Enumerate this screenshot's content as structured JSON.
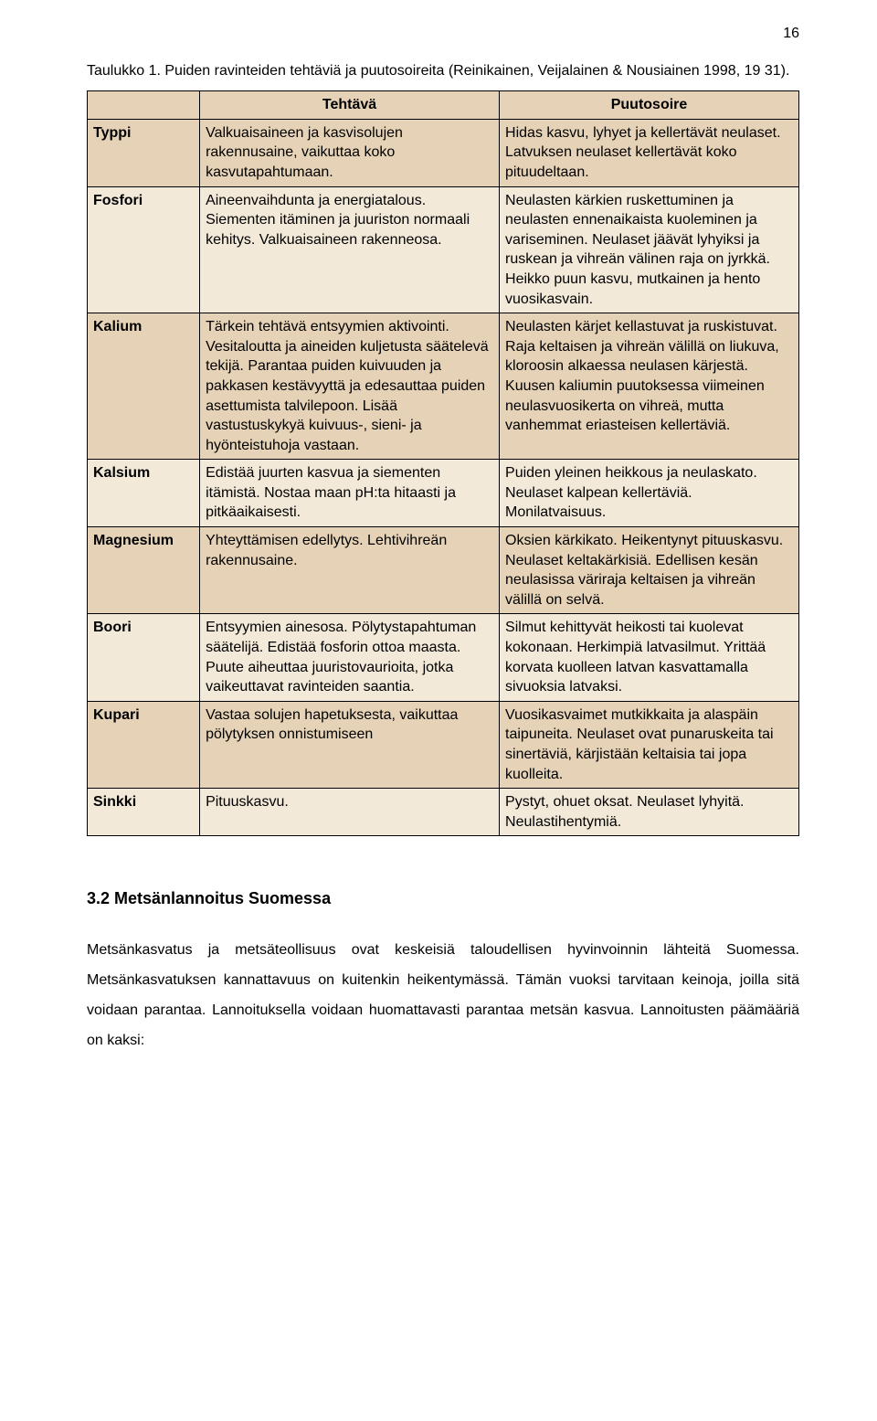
{
  "page_number": "16",
  "caption": "Taulukko 1. Puiden ravinteiden tehtäviä ja puutosoireita (Reinikainen, Veijalainen & Nousiainen 1998, 19 31).",
  "table": {
    "header": {
      "c1": "",
      "c2": "Tehtävä",
      "c3": "Puutosoire"
    },
    "rows": [
      {
        "label": "Typpi",
        "task": "Valkuaisaineen ja kasvisolujen rakennusaine, vaikuttaa koko kasvutapahtumaan.",
        "deficiency": "Hidas kasvu, lyhyet ja kellertävät neulaset. Latvuksen neulaset kellertävät koko pituudeltaan."
      },
      {
        "label": "Fosfori",
        "task": "Aineenvaihdunta ja energiatalous. Siementen itäminen ja juuriston normaali kehitys. Valkuaisaineen rakenneosa.",
        "deficiency": "Neulasten kärkien ruskettuminen ja neulasten ennenaikaista kuoleminen ja variseminen. Neulaset jäävät lyhyiksi ja ruskean ja vihreän välinen raja on jyrkkä. Heikko puun kasvu, mutkainen ja hento vuosikasvain."
      },
      {
        "label": "Kalium",
        "task": "Tärkein tehtävä entsyymien aktivointi. Vesitaloutta ja aineiden kuljetusta säätelevä tekijä. Parantaa puiden kuivuuden ja pakkasen kestävyyttä ja edesauttaa puiden asettumista talvilepoon. Lisää vastustuskykyä kuivuus-, sieni- ja hyönteistuhoja vastaan.",
        "deficiency": "Neulasten kärjet kellastuvat ja ruskistuvat. Raja keltaisen ja vihreän välillä on liukuva, kloroosin alkaessa neulasen kärjestä. Kuusen kaliumin puutoksessa viimeinen neulasvuosikerta on vihreä, mutta vanhemmat eriasteisen kellertäviä."
      },
      {
        "label": "Kalsium",
        "task": "Edistää juurten kasvua ja siementen itämistä. Nostaa maan pH:ta hitaasti ja pitkäaikaisesti.",
        "deficiency": "Puiden yleinen heikkous ja neulaskato. Neulaset kalpean kellertäviä. Monilatvaisuus."
      },
      {
        "label": "Magnesium",
        "task": "Yhteyttämisen edellytys. Lehtivihreän rakennusaine.",
        "deficiency": "Oksien kärkikato. Heikentynyt pituuskasvu. Neulaset keltakärkisiä. Edellisen kesän neulasissa väriraja keltaisen ja vihreän välillä on selvä."
      },
      {
        "label": "Boori",
        "task": "Entsyymien ainesosa. Pölytystapahtuman säätelijä. Edistää fosforin ottoa maasta. Puute aiheuttaa juuristovaurioita, jotka vaikeuttavat ravinteiden saantia.",
        "deficiency": "Silmut kehittyvät heikosti tai kuolevat kokonaan. Herkimpiä latvasilmut.  Yrittää korvata kuolleen latvan kasvattamalla sivuoksia latvaksi."
      },
      {
        "label": "Kupari",
        "task": "Vastaa solujen hapetuksesta, vaikuttaa pölytyksen onnistumiseen",
        "deficiency": "Vuosikasvaimet mutkikkaita ja alaspäin taipuneita. Neulaset ovat punaruskeita tai sinertäviä, kärjistään keltaisia tai jopa kuolleita."
      },
      {
        "label": "Sinkki",
        "task": "Pituuskasvu.",
        "deficiency": "Pystyt, ohuet oksat. Neulaset lyhyitä. Neulastihentymiä."
      }
    ],
    "row_colors": [
      "odd",
      "even",
      "odd",
      "even",
      "odd",
      "even",
      "odd",
      "even"
    ]
  },
  "section_heading": "3.2 Metsänlannoitus Suomessa",
  "paragraph": "Metsänkasvatus ja metsäteollisuus ovat keskeisiä taloudellisen hyvinvoinnin lähteitä Suomessa. Metsänkasvatuksen kannattavuus on kuitenkin heikentymässä. Tämän vuoksi tarvitaan keinoja, joilla sitä voidaan parantaa. Lannoituksella voidaan huomattavasti parantaa metsän kasvua. Lannoitusten päämääriä on kaksi:",
  "styling": {
    "background_color": "#ffffff",
    "odd_row_color": "#e6d3b7",
    "even_row_color": "#f3e9d9",
    "border_color": "#000000",
    "font_family": "Arial",
    "body_fontsize": 16,
    "heading_fontsize": 18
  }
}
